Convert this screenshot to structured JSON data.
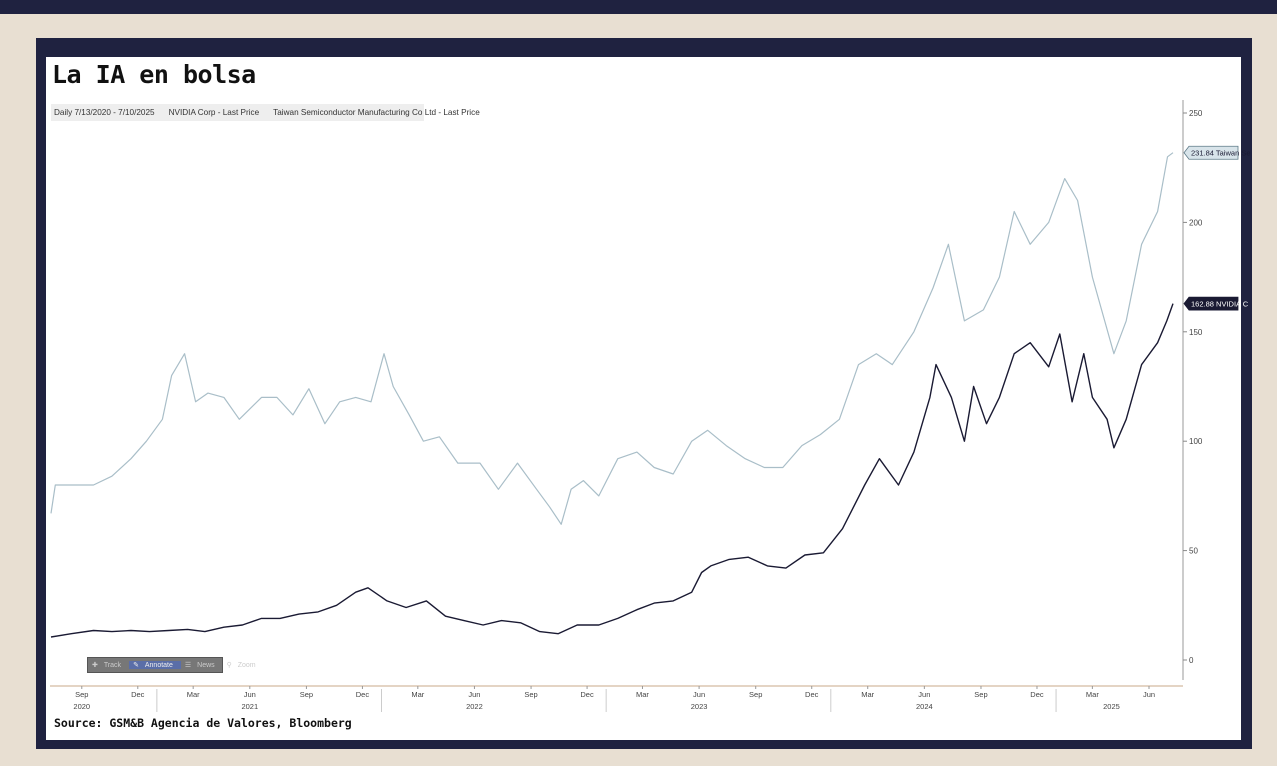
{
  "title": "La IA en bolsa",
  "legend": {
    "range": "Daily 7/13/2020 - 7/10/2025",
    "series_1": "NVIDIA Corp - Last Price",
    "series_2": "Taiwan Semiconductor Manufacturing Co Ltd - Last Price"
  },
  "source": "Source: GSM&B Agencia de Valores, Bloomberg",
  "toolbar": {
    "track": "Track",
    "annotate": "Annotate",
    "news": "News",
    "zoom": "Zoom"
  },
  "colors": {
    "nvda": "#1a1a33",
    "tsm": "#a9bec8",
    "background": "#ffffff",
    "frame": "#1f2240",
    "page": "#e8dfd2"
  },
  "chart_data": {
    "type": "line",
    "ylim": [
      0,
      250
    ],
    "y_ticks": [
      0,
      50,
      100,
      150,
      200,
      250
    ],
    "x_range": [
      "2020-07-13",
      "2025-07-10"
    ],
    "x_ticks": [
      {
        "label": "Sep",
        "date": "2020-09-01"
      },
      {
        "label": "Dec",
        "date": "2020-12-01"
      },
      {
        "label": "Mar",
        "date": "2021-03-01"
      },
      {
        "label": "Jun",
        "date": "2021-06-01"
      },
      {
        "label": "Sep",
        "date": "2021-09-01"
      },
      {
        "label": "Dec",
        "date": "2021-12-01"
      },
      {
        "label": "Mar",
        "date": "2022-03-01"
      },
      {
        "label": "Jun",
        "date": "2022-06-01"
      },
      {
        "label": "Sep",
        "date": "2022-09-01"
      },
      {
        "label": "Dec",
        "date": "2022-12-01"
      },
      {
        "label": "Mar",
        "date": "2023-03-01"
      },
      {
        "label": "Jun",
        "date": "2023-06-01"
      },
      {
        "label": "Sep",
        "date": "2023-09-01"
      },
      {
        "label": "Dec",
        "date": "2023-12-01"
      },
      {
        "label": "Mar",
        "date": "2024-03-01"
      },
      {
        "label": "Jun",
        "date": "2024-06-01"
      },
      {
        "label": "Sep",
        "date": "2024-09-01"
      },
      {
        "label": "Dec",
        "date": "2024-12-01"
      },
      {
        "label": "Mar",
        "date": "2025-03-01"
      },
      {
        "label": "Jun",
        "date": "2025-06-01"
      }
    ],
    "x_year_labels": [
      {
        "label": "2020",
        "date": "2020-09-01"
      },
      {
        "label": "2021",
        "date": "2021-06-01"
      },
      {
        "label": "2022",
        "date": "2022-06-01"
      },
      {
        "label": "2023",
        "date": "2023-06-01"
      },
      {
        "label": "2024",
        "date": "2024-06-01"
      },
      {
        "label": "2025",
        "date": "2025-04-01"
      }
    ],
    "series": [
      {
        "name": "Taiwan Semiconductor Manufacturing Co Ltd - Last Price",
        "end_label": "231.84 Taiwan Se",
        "points": [
          [
            "2020-07-13",
            67
          ],
          [
            "2020-07-20",
            80
          ],
          [
            "2020-08-15",
            80
          ],
          [
            "2020-09-20",
            80
          ],
          [
            "2020-10-20",
            84
          ],
          [
            "2020-11-20",
            92
          ],
          [
            "2020-12-15",
            100
          ],
          [
            "2021-01-10",
            110
          ],
          [
            "2021-01-25",
            130
          ],
          [
            "2021-02-15",
            140
          ],
          [
            "2021-03-05",
            118
          ],
          [
            "2021-03-25",
            122
          ],
          [
            "2021-04-20",
            120
          ],
          [
            "2021-05-15",
            110
          ],
          [
            "2021-06-20",
            120
          ],
          [
            "2021-07-15",
            120
          ],
          [
            "2021-08-10",
            112
          ],
          [
            "2021-09-05",
            124
          ],
          [
            "2021-10-01",
            108
          ],
          [
            "2021-10-25",
            118
          ],
          [
            "2021-11-20",
            120
          ],
          [
            "2021-12-15",
            118
          ],
          [
            "2022-01-05",
            140
          ],
          [
            "2022-01-20",
            125
          ],
          [
            "2022-02-15",
            112
          ],
          [
            "2022-03-10",
            100
          ],
          [
            "2022-04-05",
            102
          ],
          [
            "2022-05-05",
            90
          ],
          [
            "2022-06-10",
            90
          ],
          [
            "2022-07-10",
            78
          ],
          [
            "2022-08-10",
            90
          ],
          [
            "2022-09-10",
            78
          ],
          [
            "2022-10-01",
            70
          ],
          [
            "2022-10-20",
            62
          ],
          [
            "2022-11-05",
            78
          ],
          [
            "2022-11-25",
            82
          ],
          [
            "2022-12-20",
            75
          ],
          [
            "2023-01-20",
            92
          ],
          [
            "2023-02-20",
            95
          ],
          [
            "2023-03-20",
            88
          ],
          [
            "2023-04-20",
            85
          ],
          [
            "2023-05-20",
            100
          ],
          [
            "2023-06-15",
            105
          ],
          [
            "2023-07-15",
            98
          ],
          [
            "2023-08-15",
            92
          ],
          [
            "2023-09-15",
            88
          ],
          [
            "2023-10-15",
            88
          ],
          [
            "2023-11-15",
            98
          ],
          [
            "2023-12-15",
            103
          ],
          [
            "2024-01-15",
            110
          ],
          [
            "2024-02-15",
            135
          ],
          [
            "2024-03-15",
            140
          ],
          [
            "2024-04-10",
            135
          ],
          [
            "2024-05-15",
            150
          ],
          [
            "2024-06-15",
            170
          ],
          [
            "2024-07-10",
            190
          ],
          [
            "2024-08-05",
            155
          ],
          [
            "2024-09-05",
            160
          ],
          [
            "2024-10-01",
            175
          ],
          [
            "2024-10-25",
            205
          ],
          [
            "2024-11-20",
            190
          ],
          [
            "2024-12-20",
            200
          ],
          [
            "2025-01-15",
            220
          ],
          [
            "2025-02-05",
            210
          ],
          [
            "2025-03-01",
            175
          ],
          [
            "2025-04-05",
            140
          ],
          [
            "2025-04-25",
            155
          ],
          [
            "2025-05-20",
            190
          ],
          [
            "2025-06-15",
            205
          ],
          [
            "2025-07-01",
            230
          ],
          [
            "2025-07-10",
            231.84
          ]
        ]
      },
      {
        "name": "NVIDIA Corp - Last Price",
        "end_label": "162.88 NVIDIA C",
        "points": [
          [
            "2020-07-13",
            10.5
          ],
          [
            "2020-08-15",
            12
          ],
          [
            "2020-09-20",
            13.5
          ],
          [
            "2020-10-20",
            13
          ],
          [
            "2020-11-20",
            13.5
          ],
          [
            "2020-12-20",
            13
          ],
          [
            "2021-01-20",
            13.5
          ],
          [
            "2021-02-20",
            14
          ],
          [
            "2021-03-20",
            13
          ],
          [
            "2021-04-20",
            15
          ],
          [
            "2021-05-20",
            16
          ],
          [
            "2021-06-20",
            19
          ],
          [
            "2021-07-20",
            19
          ],
          [
            "2021-08-20",
            21
          ],
          [
            "2021-09-20",
            22
          ],
          [
            "2021-10-20",
            25
          ],
          [
            "2021-11-20",
            31
          ],
          [
            "2021-12-10",
            33
          ],
          [
            "2022-01-10",
            27
          ],
          [
            "2022-02-10",
            24
          ],
          [
            "2022-03-15",
            27
          ],
          [
            "2022-04-15",
            20
          ],
          [
            "2022-05-15",
            18
          ],
          [
            "2022-06-15",
            16
          ],
          [
            "2022-07-15",
            18
          ],
          [
            "2022-08-15",
            17
          ],
          [
            "2022-09-15",
            13
          ],
          [
            "2022-10-15",
            12
          ],
          [
            "2022-11-15",
            16
          ],
          [
            "2022-12-20",
            16
          ],
          [
            "2023-01-20",
            19
          ],
          [
            "2023-02-20",
            23
          ],
          [
            "2023-03-20",
            26
          ],
          [
            "2023-04-20",
            27
          ],
          [
            "2023-05-20",
            31
          ],
          [
            "2023-06-05",
            40
          ],
          [
            "2023-06-20",
            43
          ],
          [
            "2023-07-20",
            46
          ],
          [
            "2023-08-20",
            47
          ],
          [
            "2023-09-20",
            43
          ],
          [
            "2023-10-20",
            42
          ],
          [
            "2023-11-20",
            48
          ],
          [
            "2023-12-20",
            49
          ],
          [
            "2024-01-20",
            60
          ],
          [
            "2024-02-25",
            80
          ],
          [
            "2024-03-20",
            92
          ],
          [
            "2024-04-20",
            80
          ],
          [
            "2024-05-15",
            95
          ],
          [
            "2024-06-10",
            120
          ],
          [
            "2024-06-20",
            135
          ],
          [
            "2024-07-15",
            120
          ],
          [
            "2024-08-05",
            100
          ],
          [
            "2024-08-20",
            125
          ],
          [
            "2024-09-10",
            108
          ],
          [
            "2024-10-01",
            120
          ],
          [
            "2024-10-25",
            140
          ],
          [
            "2024-11-20",
            145
          ],
          [
            "2024-12-20",
            134
          ],
          [
            "2025-01-07",
            149
          ],
          [
            "2025-01-27",
            118
          ],
          [
            "2025-02-15",
            140
          ],
          [
            "2025-03-01",
            120
          ],
          [
            "2025-03-25",
            110
          ],
          [
            "2025-04-05",
            97
          ],
          [
            "2025-04-25",
            110
          ],
          [
            "2025-05-20",
            135
          ],
          [
            "2025-06-15",
            145
          ],
          [
            "2025-06-30",
            155
          ],
          [
            "2025-07-10",
            162.88
          ]
        ]
      }
    ]
  }
}
